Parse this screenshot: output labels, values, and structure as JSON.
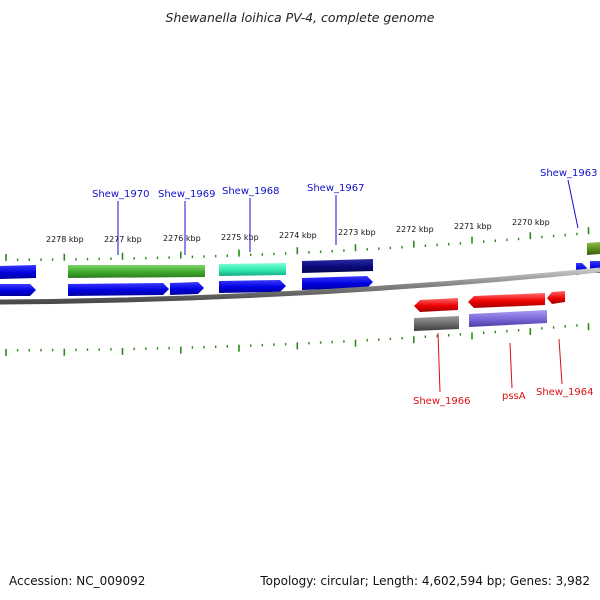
{
  "title": "Shewanella loihica PV-4, complete genome",
  "footer": {
    "accession": "Accession: NC_009092",
    "stats": "Topology: circular; Length: 4,602,594 bp; Genes: 3,982"
  },
  "colors": {
    "backbone": "#808080",
    "ticks": "#2a8a1a",
    "top_label": "#1010cc",
    "bottom_label": "#dd1010"
  },
  "scale_labels": [
    "2278 kbp",
    "2277 kbp",
    "2276 kbp",
    "2275 kbp",
    "2274 kbp",
    "2273 kbp",
    "2272 kbp",
    "2271 kbp",
    "2270 kbp"
  ],
  "top_gene_labels": [
    "Shew_1970",
    "Shew_1969",
    "Shew_1968",
    "Shew_1967",
    "Shew_1963"
  ],
  "bottom_gene_labels": [
    "Shew_1966",
    "pssA",
    "Shew_1964"
  ]
}
